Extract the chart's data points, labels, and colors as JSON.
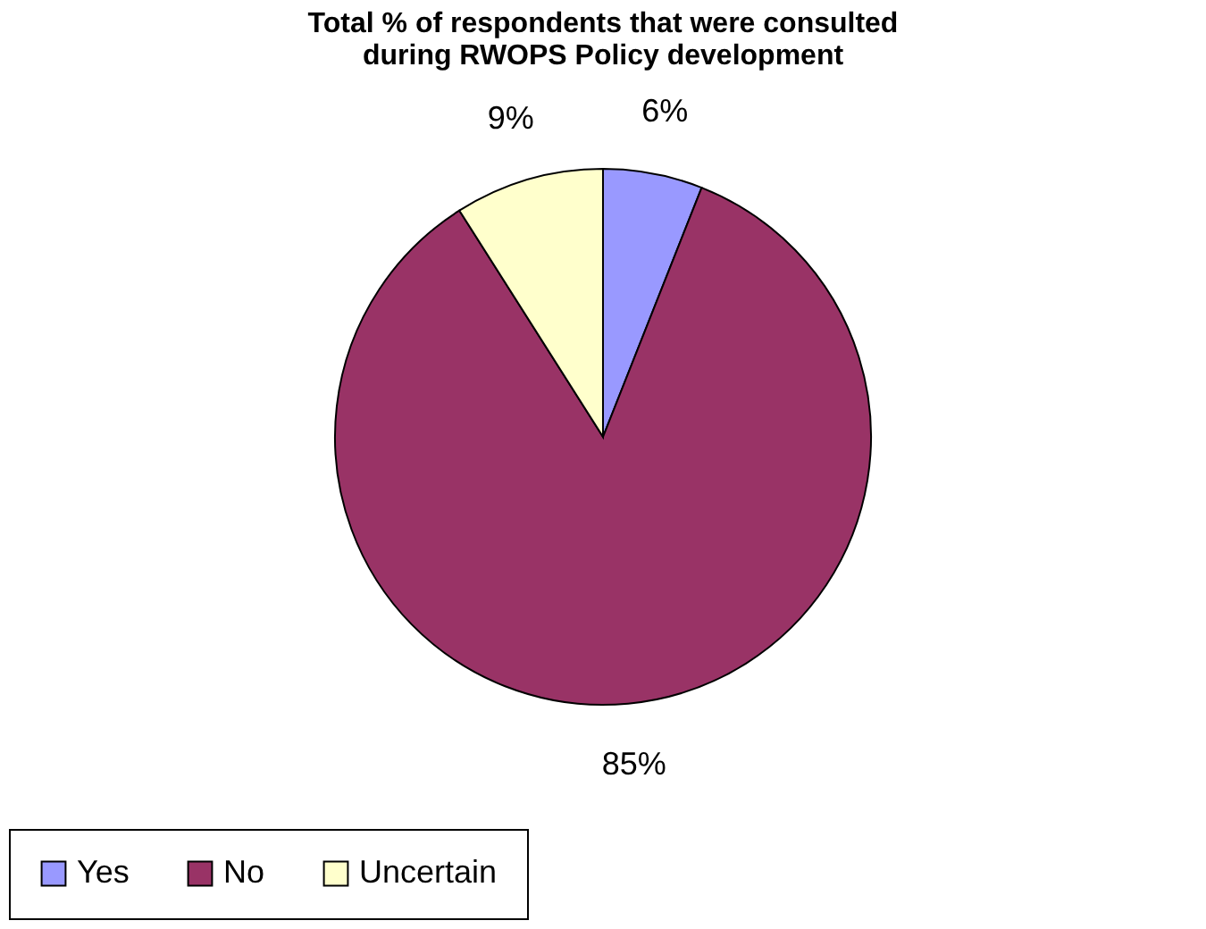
{
  "chart_data": {
    "type": "pie",
    "title": "Total % of respondents that were consulted during RWOPS Policy development",
    "categories": [
      "Yes",
      "No",
      "Uncertain"
    ],
    "values": [
      6,
      85,
      9
    ],
    "colors": [
      "#9999ff",
      "#993366",
      "#ffffcc"
    ],
    "value_labels": [
      "6%",
      "85%",
      "9%"
    ],
    "legend": "bottom"
  }
}
